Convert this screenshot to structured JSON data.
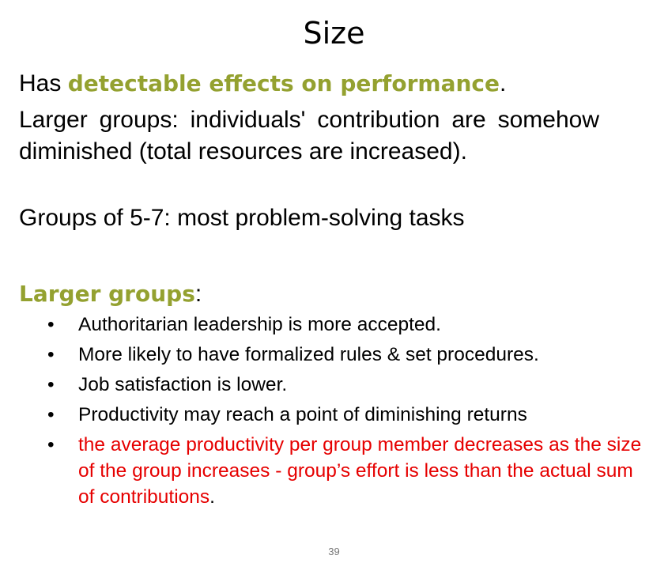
{
  "slide": {
    "title": "Size",
    "para1": {
      "prefix": "Has ",
      "highlight": "detectable effects on performance",
      "suffix": "."
    },
    "para2": "Larger groups: individuals' contribution are somehow  diminished (total resources are increased).",
    "para3": "Groups of 5-7: most problem-solving tasks",
    "subheading": {
      "highlight": "Larger groups",
      "suffix": ":"
    },
    "bullets": [
      "Authoritarian leadership is more accepted.",
      "More likely to have formalized rules & set procedures.",
      "Job satisfaction is lower.",
      "Productivity may reach a point of diminishing returns"
    ],
    "red_bullet": {
      "text": "the average productivity per group member  decreases as the size of the group increases - group’s effort is less  than the actual sum of contributions",
      "tail": "."
    },
    "bullet_glyph": "•",
    "page_number": "39",
    "colors": {
      "highlight": "#94a130",
      "emphasis_red": "#e60000"
    }
  }
}
